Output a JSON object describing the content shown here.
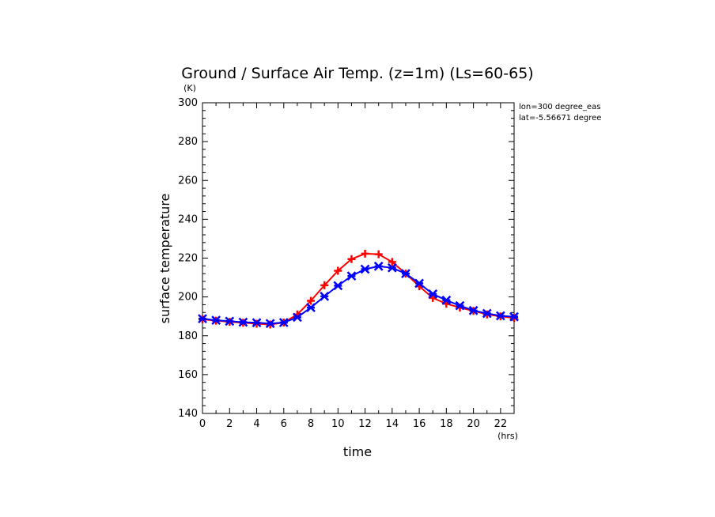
{
  "chart_data": {
    "type": "line",
    "title": "Ground / Surface Air Temp. (z=1m) (Ls=60-65)",
    "xlabel": "time",
    "ylabel": "surface temperature",
    "xunit": "(hrs)",
    "yunit": "(K)",
    "xlim": [
      0,
      23
    ],
    "ylim": [
      140,
      300
    ],
    "xticks": [
      0,
      2,
      4,
      6,
      8,
      10,
      12,
      14,
      16,
      18,
      20,
      22
    ],
    "yticks": [
      140,
      160,
      180,
      200,
      220,
      240,
      260,
      280,
      300
    ],
    "annotations": [
      "lon=300 degree_eas",
      "lat=-5.56671 degree"
    ],
    "x": [
      0,
      1,
      2,
      3,
      4,
      5,
      6,
      7,
      8,
      9,
      10,
      11,
      12,
      13,
      14,
      15,
      16,
      17,
      18,
      19,
      20,
      21,
      22,
      23
    ],
    "series": [
      {
        "color": "#ff0000",
        "marker": "plus",
        "values": [
          188.5,
          187.8,
          187.2,
          186.7,
          186.2,
          185.8,
          186.8,
          191.0,
          198.0,
          206.0,
          213.5,
          219.5,
          222.3,
          222.0,
          218.0,
          212.0,
          205.5,
          199.5,
          196.5,
          194.5,
          192.8,
          191.0,
          190.0,
          189.2
        ]
      },
      {
        "color": "#0000ff",
        "marker": "x",
        "values": [
          188.8,
          188.0,
          187.5,
          187.0,
          186.7,
          186.3,
          186.8,
          189.5,
          194.5,
          200.3,
          205.8,
          210.8,
          214.3,
          215.8,
          215.0,
          212.0,
          207.0,
          201.5,
          198.3,
          195.5,
          193.0,
          191.5,
          190.3,
          189.8
        ]
      }
    ]
  }
}
